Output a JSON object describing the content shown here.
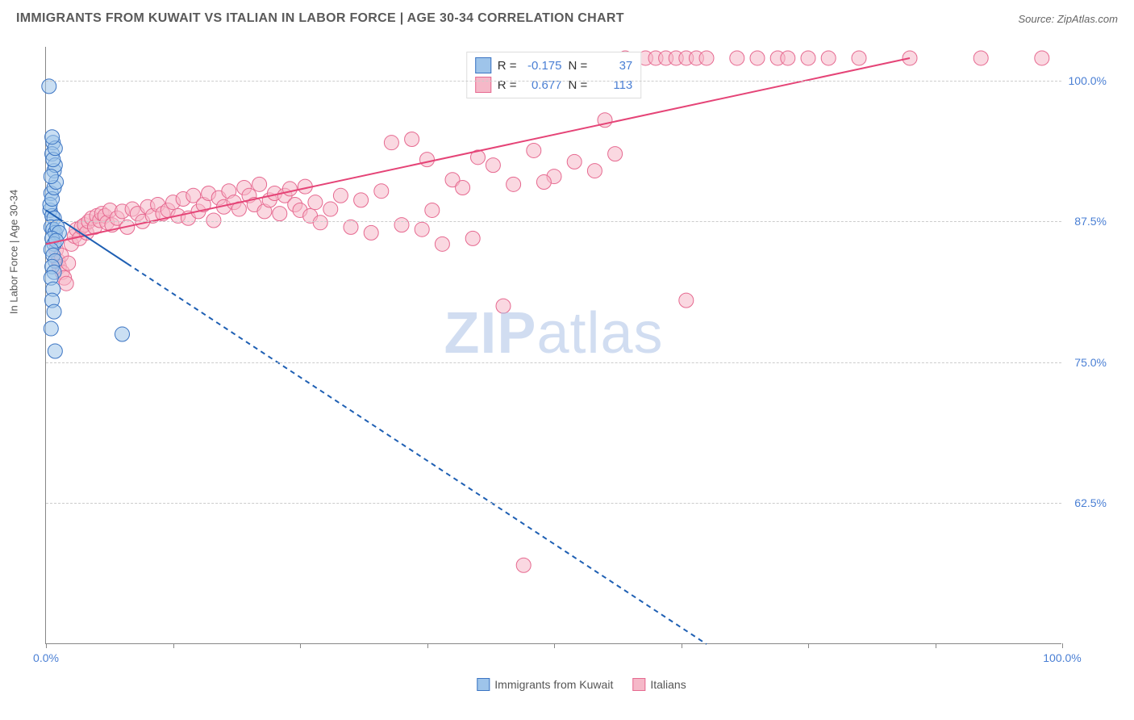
{
  "header": {
    "title": "IMMIGRANTS FROM KUWAIT VS ITALIAN IN LABOR FORCE | AGE 30-34 CORRELATION CHART",
    "source_prefix": "Source: ",
    "source_name": "ZipAtlas.com"
  },
  "chart": {
    "type": "scatter",
    "y_axis_title": "In Labor Force | Age 30-34",
    "xlim": [
      0,
      100
    ],
    "ylim": [
      50,
      103
    ],
    "x_ticks": [
      0,
      12.5,
      25,
      37.5,
      50,
      62.5,
      75,
      87.5,
      100
    ],
    "x_tick_labels": {
      "0": "0.0%",
      "100": "100.0%"
    },
    "y_gridlines": [
      62.5,
      75,
      87.5,
      100
    ],
    "y_tick_labels": {
      "62.5": "62.5%",
      "75": "75.0%",
      "87.5": "87.5%",
      "100": "100.0%"
    },
    "background_color": "#ffffff",
    "grid_color": "#cccccc",
    "axis_color": "#888888",
    "tick_label_color": "#4a7fd4",
    "marker_radius": 9,
    "marker_opacity": 0.55,
    "line_width": 2,
    "watermark": {
      "text_bold": "ZIP",
      "text_light": "atlas",
      "color": "#adc3e6"
    }
  },
  "series": {
    "kuwait": {
      "label": "Immigrants from Kuwait",
      "fill_color": "#9ec4ea",
      "stroke_color": "#3b74c3",
      "line_color": "#1e5fb3",
      "regression": {
        "x1": 0,
        "y1": 88.5,
        "x2": 65,
        "y2": 50
      },
      "dash_split_x": 8,
      "points": [
        [
          0.3,
          99.5
        ],
        [
          0.7,
          94.5
        ],
        [
          0.6,
          93.5
        ],
        [
          0.8,
          92.0
        ],
        [
          0.9,
          92.5
        ],
        [
          0.5,
          90.0
        ],
        [
          0.4,
          88.5
        ],
        [
          0.6,
          88.0
        ],
        [
          0.8,
          87.8
        ],
        [
          0.5,
          87.0
        ],
        [
          0.7,
          86.8
        ],
        [
          0.9,
          86.5
        ],
        [
          1.1,
          87.0
        ],
        [
          1.3,
          86.5
        ],
        [
          0.6,
          86.0
        ],
        [
          0.8,
          85.5
        ],
        [
          1.0,
          85.8
        ],
        [
          0.5,
          85.0
        ],
        [
          0.7,
          84.5
        ],
        [
          0.9,
          84.0
        ],
        [
          0.6,
          83.5
        ],
        [
          0.8,
          83.0
        ],
        [
          0.5,
          82.5
        ],
        [
          0.7,
          81.5
        ],
        [
          0.6,
          80.5
        ],
        [
          0.8,
          79.5
        ],
        [
          0.5,
          78.0
        ],
        [
          0.9,
          76.0
        ],
        [
          7.5,
          77.5
        ],
        [
          0.4,
          89.0
        ],
        [
          0.6,
          89.5
        ],
        [
          0.8,
          90.5
        ],
        [
          1.0,
          91.0
        ],
        [
          0.5,
          91.5
        ],
        [
          0.7,
          93.0
        ],
        [
          0.9,
          94.0
        ],
        [
          0.6,
          95.0
        ]
      ]
    },
    "italian": {
      "label": "Italians",
      "fill_color": "#f5b8c8",
      "stroke_color": "#e66990",
      "line_color": "#e54477",
      "regression": {
        "x1": 0,
        "y1": 85.5,
        "x2": 85,
        "y2": 102
      },
      "points": [
        [
          1.0,
          85.0
        ],
        [
          1.2,
          84.0
        ],
        [
          1.5,
          84.5
        ],
        [
          1.3,
          83.5
        ],
        [
          1.6,
          83.0
        ],
        [
          1.8,
          82.5
        ],
        [
          2.0,
          82.0
        ],
        [
          2.2,
          83.8
        ],
        [
          2.5,
          85.5
        ],
        [
          2.8,
          86.2
        ],
        [
          3.0,
          86.8
        ],
        [
          3.3,
          86.0
        ],
        [
          3.5,
          87.0
        ],
        [
          3.8,
          87.2
        ],
        [
          4.0,
          86.5
        ],
        [
          4.2,
          87.5
        ],
        [
          4.5,
          87.8
        ],
        [
          4.8,
          87.0
        ],
        [
          5.0,
          88.0
        ],
        [
          5.3,
          87.6
        ],
        [
          5.5,
          88.2
        ],
        [
          5.8,
          88.0
        ],
        [
          6.0,
          87.4
        ],
        [
          6.3,
          88.5
        ],
        [
          6.5,
          87.2
        ],
        [
          7.0,
          87.8
        ],
        [
          7.5,
          88.4
        ],
        [
          8.0,
          87.0
        ],
        [
          8.5,
          88.6
        ],
        [
          9.0,
          88.2
        ],
        [
          9.5,
          87.5
        ],
        [
          10.0,
          88.8
        ],
        [
          10.5,
          88.0
        ],
        [
          11.0,
          89.0
        ],
        [
          11.5,
          88.2
        ],
        [
          12.0,
          88.5
        ],
        [
          12.5,
          89.2
        ],
        [
          13.0,
          88.0
        ],
        [
          13.5,
          89.5
        ],
        [
          14.0,
          87.8
        ],
        [
          14.5,
          89.8
        ],
        [
          15.0,
          88.4
        ],
        [
          15.5,
          89.0
        ],
        [
          16.0,
          90.0
        ],
        [
          16.5,
          87.6
        ],
        [
          17.0,
          89.6
        ],
        [
          17.5,
          88.8
        ],
        [
          18.0,
          90.2
        ],
        [
          18.5,
          89.2
        ],
        [
          19.0,
          88.6
        ],
        [
          19.5,
          90.5
        ],
        [
          20.0,
          89.8
        ],
        [
          20.5,
          89.0
        ],
        [
          21.0,
          90.8
        ],
        [
          21.5,
          88.4
        ],
        [
          22.0,
          89.4
        ],
        [
          22.5,
          90.0
        ],
        [
          23.0,
          88.2
        ],
        [
          23.5,
          89.8
        ],
        [
          24.0,
          90.4
        ],
        [
          24.5,
          89.0
        ],
        [
          25.0,
          88.5
        ],
        [
          25.5,
          90.6
        ],
        [
          26.0,
          88.0
        ],
        [
          26.5,
          89.2
        ],
        [
          27.0,
          87.4
        ],
        [
          28.0,
          88.6
        ],
        [
          29.0,
          89.8
        ],
        [
          30.0,
          87.0
        ],
        [
          31.0,
          89.4
        ],
        [
          32.0,
          86.5
        ],
        [
          33.0,
          90.2
        ],
        [
          34.0,
          94.5
        ],
        [
          35.0,
          87.2
        ],
        [
          36.0,
          94.8
        ],
        [
          37.0,
          86.8
        ],
        [
          38.0,
          88.5
        ],
        [
          39.0,
          85.5
        ],
        [
          40.0,
          91.2
        ],
        [
          41.0,
          90.5
        ],
        [
          42.0,
          86.0
        ],
        [
          44.0,
          92.5
        ],
        [
          45.0,
          80.0
        ],
        [
          46.0,
          90.8
        ],
        [
          48.0,
          93.8
        ],
        [
          50.0,
          91.5
        ],
        [
          52.0,
          92.8
        ],
        [
          54.0,
          92.0
        ],
        [
          55.0,
          96.5
        ],
        [
          56.0,
          93.5
        ],
        [
          57.0,
          102.0
        ],
        [
          59.0,
          102.0
        ],
        [
          60.0,
          102.0
        ],
        [
          61.0,
          102.0
        ],
        [
          62.0,
          102.0
        ],
        [
          63.0,
          102.0
        ],
        [
          64.0,
          102.0
        ],
        [
          65.0,
          102.0
        ],
        [
          47.0,
          57.0
        ],
        [
          68.0,
          102.0
        ],
        [
          70.0,
          102.0
        ],
        [
          72.0,
          102.0
        ],
        [
          73.0,
          102.0
        ],
        [
          75.0,
          102.0
        ],
        [
          77.0,
          102.0
        ],
        [
          80.0,
          102.0
        ],
        [
          85.0,
          102.0
        ],
        [
          92.0,
          102.0
        ],
        [
          98.0,
          102.0
        ],
        [
          63.0,
          80.5
        ],
        [
          37.5,
          93.0
        ],
        [
          49.0,
          91.0
        ],
        [
          42.5,
          93.2
        ]
      ]
    }
  },
  "stats_box": {
    "rows": [
      {
        "swatch_fill": "#9ec4ea",
        "swatch_stroke": "#3b74c3",
        "r_label": "R =",
        "r_val": "-0.175",
        "n_label": "N =",
        "n_val": "37"
      },
      {
        "swatch_fill": "#f5b8c8",
        "swatch_stroke": "#e66990",
        "r_label": "R =",
        "r_val": "0.677",
        "n_label": "N =",
        "n_val": "113"
      }
    ]
  },
  "legend": {
    "items": [
      {
        "swatch_fill": "#9ec4ea",
        "swatch_stroke": "#3b74c3",
        "label": "Immigrants from Kuwait"
      },
      {
        "swatch_fill": "#f5b8c8",
        "swatch_stroke": "#e66990",
        "label": "Italians"
      }
    ]
  }
}
